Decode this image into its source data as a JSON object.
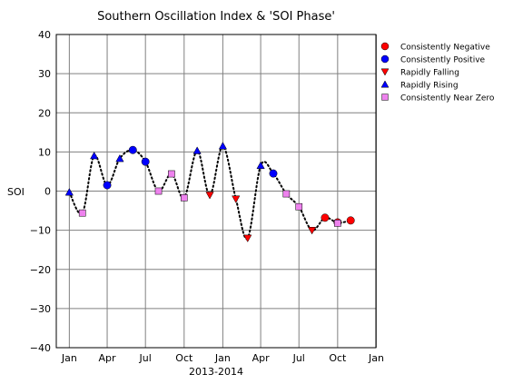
{
  "chart_data": {
    "type": "scatter",
    "title": "Southern Oscillation Index & 'SOI Phase'",
    "xlabel": "2013-2014",
    "ylabel": "SOI",
    "ylim": [
      -40,
      40
    ],
    "xlim": [
      "2012-12-01",
      "2014-12-31"
    ],
    "grid": true,
    "legend_position": "right",
    "yticks": [
      40,
      30,
      20,
      10,
      0,
      -10,
      -20,
      -30,
      -40
    ],
    "xticks": [
      {
        "label": "Jan",
        "date": "2013-01-01"
      },
      {
        "label": "Apr",
        "date": "2013-04-01"
      },
      {
        "label": "Jul",
        "date": "2013-07-01"
      },
      {
        "label": "Oct",
        "date": "2013-10-01"
      },
      {
        "label": "Jan",
        "date": "2014-01-01"
      },
      {
        "label": "Apr",
        "date": "2014-04-01"
      },
      {
        "label": "Jul",
        "date": "2014-07-01"
      },
      {
        "label": "Oct",
        "date": "2014-10-01"
      },
      {
        "label": "Jan",
        "date": "2015-01-01"
      }
    ],
    "series": [
      {
        "name": "Consistently Negative",
        "marker": "circle",
        "color": "#ff0000",
        "points": [
          {
            "x": "2014-09-01",
            "y": -6.8
          },
          {
            "x": "2014-10-01",
            "y": -8.0
          },
          {
            "x": "2014-11-01",
            "y": -7.5
          }
        ]
      },
      {
        "name": "Consistently Positive",
        "marker": "circle",
        "color": "#0000ff",
        "points": [
          {
            "x": "2013-04-01",
            "y": 1.5
          },
          {
            "x": "2013-06-01",
            "y": 10.5
          },
          {
            "x": "2013-07-01",
            "y": 7.5
          },
          {
            "x": "2014-05-01",
            "y": 4.5
          }
        ]
      },
      {
        "name": "Rapidly Falling",
        "marker": "triangle-down",
        "color": "#ff0000",
        "points": [
          {
            "x": "2013-12-01",
            "y": -1.0
          },
          {
            "x": "2014-02-01",
            "y": -2.0
          },
          {
            "x": "2014-03-01",
            "y": -12.0
          },
          {
            "x": "2014-08-01",
            "y": -10.0
          }
        ]
      },
      {
        "name": "Rapidly Rising",
        "marker": "triangle-up",
        "color": "#0000ff",
        "points": [
          {
            "x": "2013-01-01",
            "y": -0.3
          },
          {
            "x": "2013-03-01",
            "y": 9.0
          },
          {
            "x": "2013-05-01",
            "y": 8.3
          },
          {
            "x": "2013-11-01",
            "y": 10.3
          },
          {
            "x": "2014-01-01",
            "y": 11.5
          },
          {
            "x": "2014-04-01",
            "y": 6.5
          }
        ]
      },
      {
        "name": "Consistently Near Zero",
        "marker": "square",
        "color": "#ee82ee",
        "points": [
          {
            "x": "2013-02-01",
            "y": -5.6
          },
          {
            "x": "2013-08-01",
            "y": 0.0
          },
          {
            "x": "2013-09-01",
            "y": 4.4
          },
          {
            "x": "2013-10-01",
            "y": -1.7
          },
          {
            "x": "2014-06-01",
            "y": -0.7
          },
          {
            "x": "2014-07-01",
            "y": -4.0
          },
          {
            "x": "2014-10-01",
            "y": -8.2
          }
        ]
      }
    ],
    "trend_line": {
      "style": "dotted",
      "color": "#000000",
      "points": [
        {
          "x": "2013-01-01",
          "y": -0.3
        },
        {
          "x": "2013-02-01",
          "y": -5.6
        },
        {
          "x": "2013-03-01",
          "y": 9.0
        },
        {
          "x": "2013-04-01",
          "y": 1.5
        },
        {
          "x": "2013-05-01",
          "y": 8.3
        },
        {
          "x": "2013-06-01",
          "y": 10.5
        },
        {
          "x": "2013-07-01",
          "y": 7.5
        },
        {
          "x": "2013-08-01",
          "y": 0.0
        },
        {
          "x": "2013-09-01",
          "y": 4.4
        },
        {
          "x": "2013-10-01",
          "y": -1.7
        },
        {
          "x": "2013-11-01",
          "y": 10.3
        },
        {
          "x": "2013-12-01",
          "y": -1.0
        },
        {
          "x": "2014-01-01",
          "y": 11.5
        },
        {
          "x": "2014-02-01",
          "y": -2.0
        },
        {
          "x": "2014-03-01",
          "y": -12.0
        },
        {
          "x": "2014-04-01",
          "y": 6.5
        },
        {
          "x": "2014-05-01",
          "y": 4.5
        },
        {
          "x": "2014-06-01",
          "y": -0.7
        },
        {
          "x": "2014-07-01",
          "y": -4.0
        },
        {
          "x": "2014-08-01",
          "y": -10.0
        },
        {
          "x": "2014-09-01",
          "y": -6.8
        },
        {
          "x": "2014-10-01",
          "y": -8.1
        },
        {
          "x": "2014-11-01",
          "y": -7.5
        }
      ]
    }
  }
}
